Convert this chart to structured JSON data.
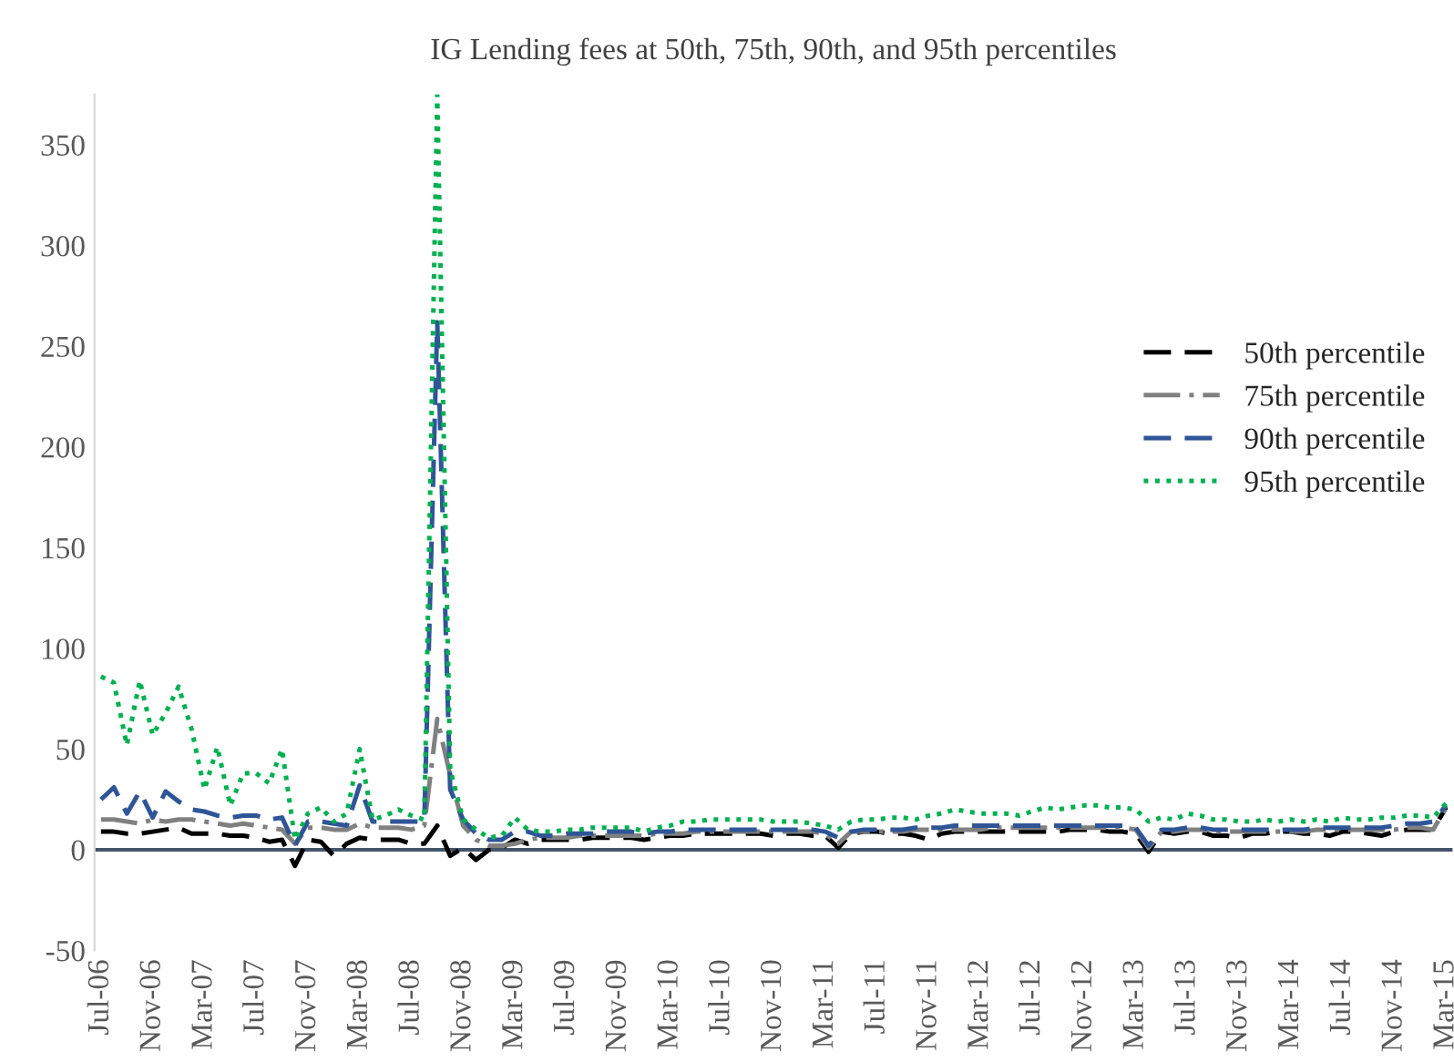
{
  "chart_data": {
    "type": "line",
    "title": "IG Lending fees at 50th, 75th, 90th, and 95th percentiles",
    "categories": [
      "Jul-06",
      null,
      null,
      null,
      "Nov-06",
      null,
      null,
      null,
      "Mar-07",
      null,
      null,
      null,
      "Jul-07",
      null,
      null,
      null,
      "Nov-07",
      null,
      null,
      null,
      "Mar-08",
      null,
      null,
      null,
      "Jul-08",
      null,
      null,
      null,
      "Nov-08",
      null,
      null,
      null,
      "Mar-09",
      null,
      null,
      null,
      "Jul-09",
      null,
      null,
      null,
      "Nov-09",
      null,
      null,
      null,
      "Mar-10",
      null,
      null,
      null,
      "Jul-10",
      null,
      null,
      null,
      "Nov-10",
      null,
      null,
      null,
      "Mar-11",
      null,
      null,
      null,
      "Jul-11",
      null,
      null,
      null,
      "Nov-11",
      null,
      null,
      null,
      "Mar-12",
      null,
      null,
      null,
      "Jul-12",
      null,
      null,
      null,
      "Nov-12",
      null,
      null,
      null,
      "Mar-13",
      null,
      null,
      null,
      "Jul-13",
      null,
      null,
      null,
      "Nov-13",
      null,
      null,
      null,
      "Mar-14",
      null,
      null,
      null,
      "Jul-14",
      null,
      null,
      null,
      "Nov-14",
      null,
      null,
      null,
      "Mar-15"
    ],
    "series": [
      {
        "name": "50th percentile",
        "color": "#000000",
        "line_style": "dashed",
        "values": [
          9,
          9,
          8,
          8,
          9,
          10,
          11,
          8,
          8,
          8,
          7,
          7,
          6,
          4,
          5,
          -8,
          5,
          4,
          -3,
          3,
          6,
          5,
          5,
          5,
          3,
          3,
          12,
          -3,
          1,
          -5,
          0,
          1,
          5,
          3,
          5,
          5,
          5,
          5,
          6,
          6,
          6,
          6,
          5,
          6,
          7,
          7,
          8,
          8,
          8,
          8,
          8,
          8,
          7,
          8,
          8,
          7,
          7,
          1,
          8,
          9,
          9,
          8,
          8,
          7,
          5,
          8,
          9,
          9,
          9,
          9,
          9,
          9,
          9,
          9,
          9,
          10,
          10,
          10,
          9,
          9,
          8,
          -1,
          9,
          8,
          9,
          9,
          7,
          7,
          6,
          8,
          8,
          9,
          9,
          8,
          8,
          7,
          9,
          9,
          8,
          7,
          9,
          10,
          10,
          10,
          21
        ]
      },
      {
        "name": "75th percentile",
        "color": "#808080",
        "line_style": "dashdot",
        "values": [
          15,
          15,
          14,
          13,
          15,
          14,
          15,
          15,
          14,
          13,
          12,
          13,
          12,
          11,
          10,
          3,
          11,
          11,
          10,
          10,
          13,
          11,
          11,
          11,
          10,
          12,
          65,
          37,
          12,
          5,
          2,
          2,
          3,
          5,
          6,
          6,
          6,
          7,
          7,
          7,
          7,
          7,
          7,
          8,
          8,
          8,
          9,
          9,
          9,
          9,
          9,
          9,
          9,
          9,
          9,
          9,
          8,
          3,
          9,
          9,
          9,
          9,
          9,
          10,
          10,
          10,
          10,
          10,
          10,
          11,
          11,
          11,
          11,
          11,
          11,
          11,
          11,
          11,
          11,
          11,
          10,
          1,
          9,
          9,
          10,
          10,
          9,
          9,
          9,
          9,
          9,
          9,
          9,
          9,
          10,
          10,
          10,
          10,
          10,
          10,
          10,
          11,
          11,
          10,
          21
        ]
      },
      {
        "name": "90th percentile",
        "color": "#2f5597",
        "line_style": "dashed",
        "values": [
          25,
          31,
          18,
          29,
          16,
          29,
          24,
          20,
          19,
          17,
          16,
          17,
          17,
          15,
          16,
          2,
          14,
          14,
          13,
          12,
          32,
          14,
          14,
          14,
          14,
          14,
          262,
          30,
          15,
          8,
          5,
          5,
          9,
          9,
          7,
          7,
          8,
          8,
          8,
          9,
          9,
          9,
          8,
          9,
          9,
          10,
          10,
          10,
          10,
          10,
          10,
          10,
          10,
          10,
          10,
          10,
          9,
          6,
          9,
          10,
          10,
          10,
          10,
          11,
          11,
          11,
          12,
          12,
          12,
          12,
          12,
          12,
          12,
          12,
          12,
          12,
          12,
          12,
          12,
          12,
          11,
          2,
          10,
          10,
          11,
          11,
          10,
          10,
          10,
          10,
          10,
          10,
          10,
          10,
          11,
          11,
          11,
          11,
          11,
          11,
          12,
          13,
          13,
          14,
          22
        ]
      },
      {
        "name": "95th percentile",
        "color": "#00b050",
        "line_style": "dotted",
        "values": [
          86,
          83,
          52,
          84,
          57,
          68,
          81,
          60,
          30,
          51,
          22,
          38,
          38,
          33,
          50,
          5,
          18,
          21,
          14,
          18,
          50,
          15,
          17,
          20,
          17,
          15,
          375,
          40,
          15,
          10,
          6,
          7,
          16,
          10,
          9,
          9,
          10,
          10,
          11,
          11,
          11,
          11,
          9,
          11,
          12,
          14,
          14,
          15,
          15,
          15,
          15,
          15,
          14,
          14,
          14,
          13,
          12,
          10,
          14,
          15,
          15,
          16,
          16,
          15,
          17,
          18,
          20,
          19,
          18,
          18,
          18,
          17,
          19,
          21,
          20,
          21,
          22,
          22,
          21,
          21,
          20,
          14,
          16,
          15,
          18,
          17,
          15,
          15,
          14,
          14,
          15,
          14,
          15,
          14,
          15,
          14,
          16,
          15,
          15,
          16,
          16,
          17,
          17,
          16,
          23
        ]
      }
    ],
    "ylim": [
      -50,
      375
    ],
    "yticks": [
      -50,
      0,
      50,
      100,
      150,
      200,
      250,
      300,
      350
    ],
    "ref_lines": [
      {
        "axis": "y",
        "value": 0,
        "color": "#44546a"
      }
    ],
    "grid": false,
    "legend": "right",
    "marker": "none"
  }
}
